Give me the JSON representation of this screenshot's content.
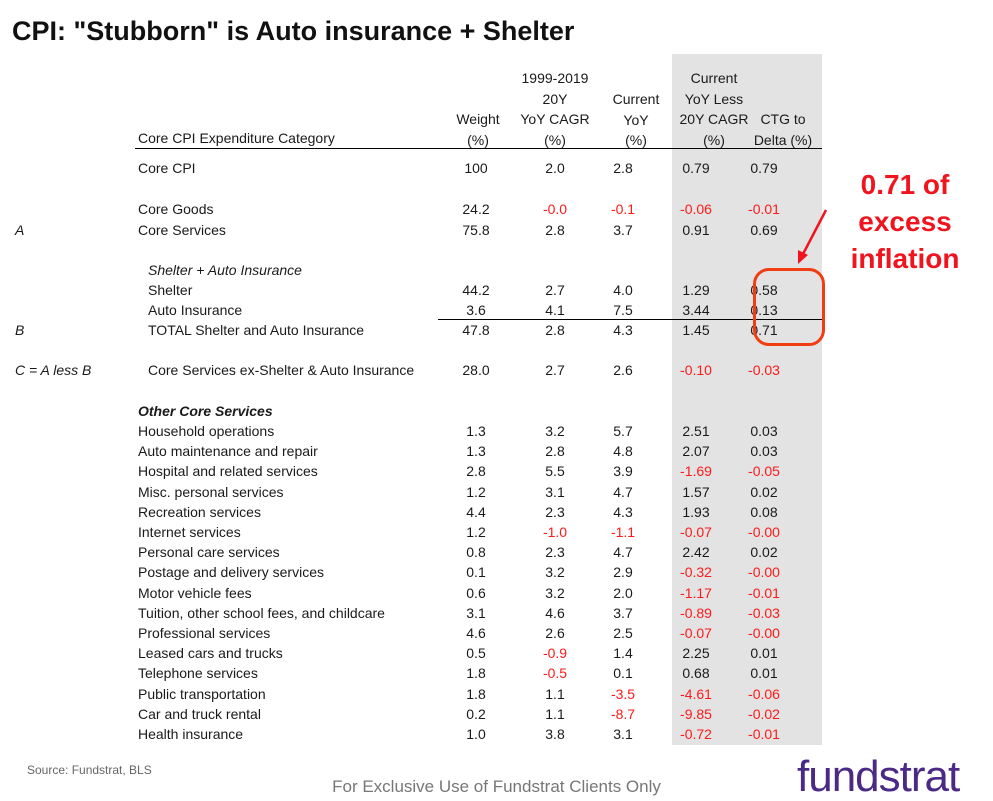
{
  "title": "CPI: \"Stubborn\" is Auto insurance + Shelter",
  "headers": {
    "category": "Core CPI Expenditure Category",
    "weight": [
      "Weight",
      "(%)"
    ],
    "cagr": [
      "1999-2019",
      "20Y",
      "YoY CAGR",
      "(%)"
    ],
    "current": [
      "Current",
      "YoY",
      "(%)"
    ],
    "less": [
      "Current",
      "YoY Less",
      "20Y CAGR",
      "(%)"
    ],
    "ctg": [
      "CTG to",
      "Delta (%)"
    ]
  },
  "rows": [
    {
      "letter": "",
      "label": "Core CPI",
      "style": "normal",
      "values": [
        "100",
        "2.0",
        "2.8",
        "0.79",
        "0.79"
      ]
    },
    {
      "letter": "",
      "label": "Core Goods",
      "style": "normal",
      "values": [
        "24.2",
        "-0.0",
        "-0.1",
        "-0.06",
        "-0.01"
      ]
    },
    {
      "letter": "A",
      "label": "Core Services",
      "style": "normal",
      "values": [
        "75.8",
        "2.8",
        "3.7",
        "0.91",
        "0.69"
      ]
    },
    {
      "letter": "",
      "label": "Shelter + Auto Insurance",
      "style": "italic-indent",
      "values": []
    },
    {
      "letter": "",
      "label": "Shelter",
      "style": "indent",
      "values": [
        "44.2",
        "2.7",
        "4.0",
        "1.29",
        "0.58"
      ]
    },
    {
      "letter": "",
      "label": "Auto Insurance",
      "style": "indent",
      "values": [
        "3.6",
        "4.1",
        "7.5",
        "3.44",
        "0.13"
      ]
    },
    {
      "letter": "B",
      "label": "TOTAL Shelter and Auto Insurance",
      "style": "indent",
      "values": [
        "47.8",
        "2.8",
        "4.3",
        "1.45",
        "0.71"
      ]
    },
    {
      "letter": "C = A less B",
      "label": "Core Services ex-Shelter & Auto Insurance",
      "style": "indent",
      "values": [
        "28.0",
        "2.7",
        "2.6",
        "-0.10",
        "-0.03"
      ]
    },
    {
      "letter": "",
      "label": "Other Core Services",
      "style": "bold-italic",
      "values": []
    },
    {
      "letter": "",
      "label": "Household operations",
      "style": "normal",
      "values": [
        "1.3",
        "3.2",
        "5.7",
        "2.51",
        "0.03"
      ]
    },
    {
      "letter": "",
      "label": "Auto maintenance and repair",
      "style": "normal",
      "values": [
        "1.3",
        "2.8",
        "4.8",
        "2.07",
        "0.03"
      ]
    },
    {
      "letter": "",
      "label": "Hospital and related services",
      "style": "normal",
      "values": [
        "2.8",
        "5.5",
        "3.9",
        "-1.69",
        "-0.05"
      ]
    },
    {
      "letter": "",
      "label": "Misc. personal services",
      "style": "normal",
      "values": [
        "1.2",
        "3.1",
        "4.7",
        "1.57",
        "0.02"
      ]
    },
    {
      "letter": "",
      "label": "Recreation services",
      "style": "normal",
      "values": [
        "4.4",
        "2.3",
        "4.3",
        "1.93",
        "0.08"
      ]
    },
    {
      "letter": "",
      "label": "Internet services",
      "style": "normal",
      "values": [
        "1.2",
        "-1.0",
        "-1.1",
        "-0.07",
        "-0.00"
      ]
    },
    {
      "letter": "",
      "label": "Personal care services",
      "style": "normal",
      "values": [
        "0.8",
        "2.3",
        "4.7",
        "2.42",
        "0.02"
      ]
    },
    {
      "letter": "",
      "label": "Postage and delivery services",
      "style": "normal",
      "values": [
        "0.1",
        "3.2",
        "2.9",
        "-0.32",
        "-0.00"
      ]
    },
    {
      "letter": "",
      "label": "Motor vehicle fees",
      "style": "normal",
      "values": [
        "0.6",
        "3.2",
        "2.0",
        "-1.17",
        "-0.01"
      ]
    },
    {
      "letter": "",
      "label": "Tuition, other school fees, and childcare",
      "style": "normal",
      "values": [
        "3.1",
        "4.6",
        "3.7",
        "-0.89",
        "-0.03"
      ]
    },
    {
      "letter": "",
      "label": "Professional services",
      "style": "normal",
      "values": [
        "4.6",
        "2.6",
        "2.5",
        "-0.07",
        "-0.00"
      ]
    },
    {
      "letter": "",
      "label": "Leased cars and trucks",
      "style": "normal",
      "values": [
        "0.5",
        "-0.9",
        "1.4",
        "2.25",
        "0.01"
      ]
    },
    {
      "letter": "",
      "label": "Telephone services",
      "style": "normal",
      "values": [
        "1.8",
        "-0.5",
        "0.1",
        "0.68",
        "0.01"
      ]
    },
    {
      "letter": "",
      "label": "Public transportation",
      "style": "normal",
      "values": [
        "1.8",
        "1.1",
        "-3.5",
        "-4.61",
        "-0.06"
      ]
    },
    {
      "letter": "",
      "label": "Car and truck rental",
      "style": "normal",
      "values": [
        "0.2",
        "1.1",
        "-8.7",
        "-9.85",
        "-0.02"
      ]
    },
    {
      "letter": "",
      "label": "Health insurance",
      "style": "normal",
      "values": [
        "1.0",
        "3.8",
        "3.1",
        "-0.72",
        "-0.01"
      ]
    }
  ],
  "annotation": [
    "0.71 of",
    "excess",
    "inflation"
  ],
  "source": "Source: Fundstrat, BLS",
  "disclaimer": "For Exclusive Use of Fundstrat Clients Only",
  "logo": "fundstrat",
  "colors": {
    "negative": "#ff1a1a",
    "annotation": "#f0141e",
    "highlight_box": "#f23c12",
    "band": "#e3e3e3",
    "logo": "#4b2a85"
  }
}
